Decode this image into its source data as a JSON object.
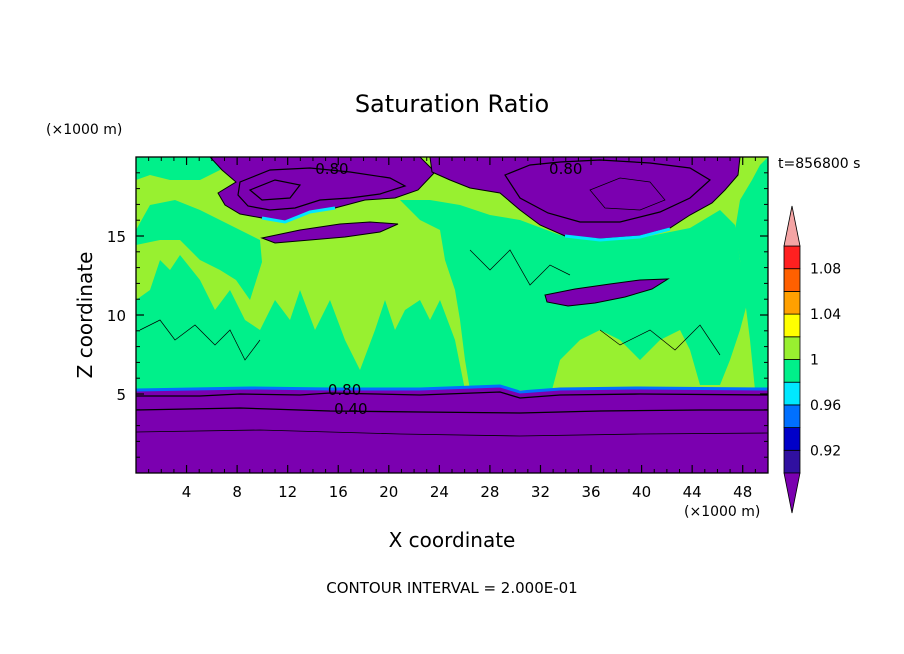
{
  "chart_data": {
    "type": "heatmap",
    "title": "Saturation Ratio",
    "xlabel": "X coordinate",
    "ylabel": "Z coordinate",
    "x_unit_label": "(×1000 m)",
    "y_unit_label": "(×1000 m)",
    "time_label": "t=856800 s",
    "footer": "CONTOUR INTERVAL = 2.000E-01",
    "xlim": [
      0,
      50
    ],
    "ylim": [
      0,
      20
    ],
    "x_ticks": [
      4,
      8,
      12,
      16,
      20,
      24,
      28,
      32,
      36,
      40,
      44,
      48
    ],
    "y_ticks": [
      5,
      10,
      15
    ],
    "contour_labels": [
      {
        "text": "0.80",
        "x": 15.5,
        "y": 19.0
      },
      {
        "text": "0.80",
        "x": 34.0,
        "y": 19.0
      },
      {
        "text": "0.80",
        "x": 16.5,
        "y": 5.0
      },
      {
        "text": "0.40",
        "x": 17.0,
        "y": 3.8
      }
    ],
    "colorbar": {
      "levels": [
        0.9,
        0.92,
        0.94,
        0.96,
        0.98,
        1.0,
        1.02,
        1.04,
        1.06,
        1.08,
        1.1
      ],
      "tick_labels": [
        "0.92",
        "0.96",
        "1",
        "1.04",
        "1.08"
      ],
      "tick_values": [
        0.92,
        0.96,
        1.0,
        1.04,
        1.08
      ],
      "under_color": "#7b00b0",
      "over_color": "#f4a4a4",
      "colors": [
        "#3010a0",
        "#0000c8",
        "#0070ff",
        "#00e8ff",
        "#00f08a",
        "#98f030",
        "#ffff00",
        "#ffa000",
        "#ff6000",
        "#ff2020"
      ]
    },
    "regions": {
      "lower_band": {
        "z_top": 5.3,
        "value": "<0.90"
      },
      "upper_cloud_tops": {
        "z_bottom": 16.5,
        "z_top": 19.5
      },
      "mid_layer": {
        "z_bottom": 5.3,
        "z_top": 16.0
      }
    }
  }
}
